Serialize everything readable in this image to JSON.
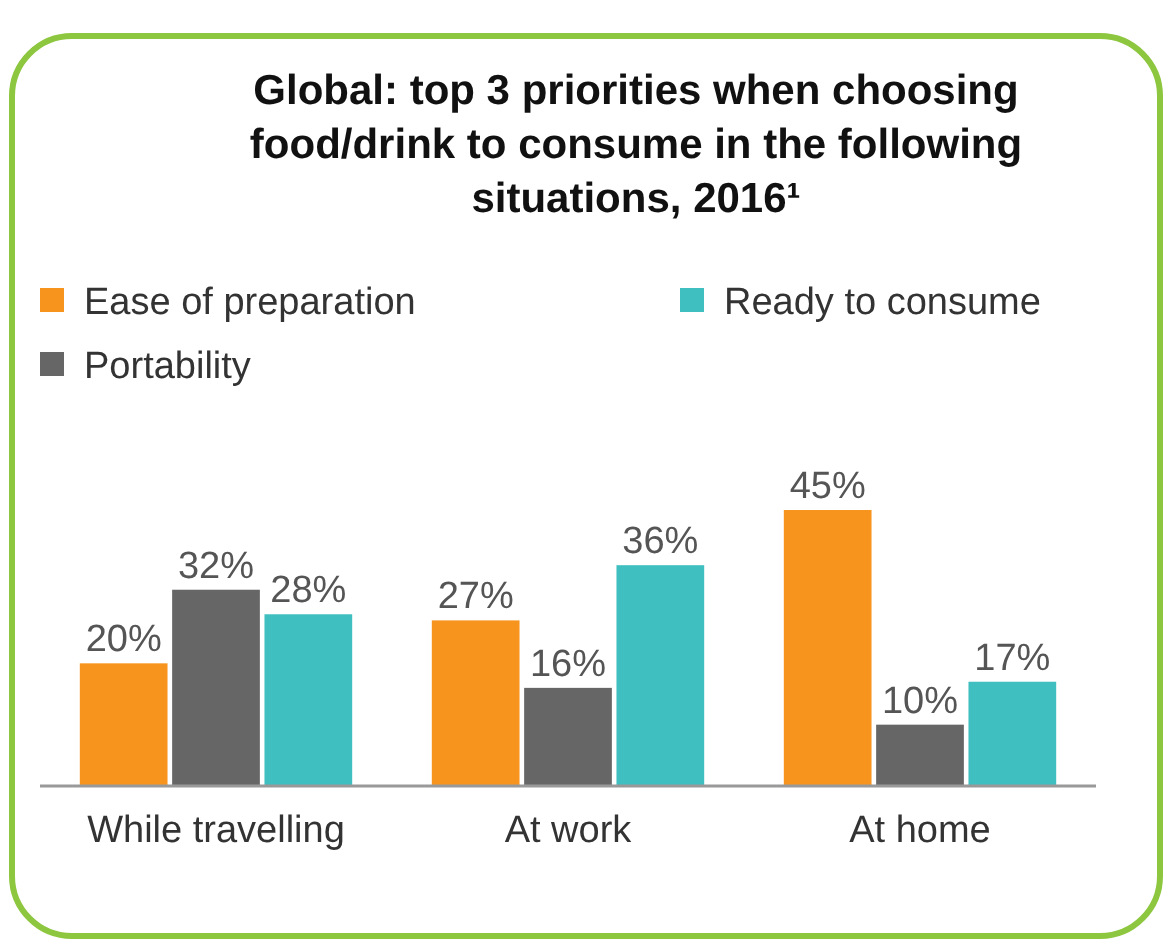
{
  "chart_data": {
    "type": "bar",
    "title": "Global: top 3 priorities when choosing food/drink to consume in the following situations, 2016¹",
    "categories": [
      "While travelling",
      "At work",
      "At home"
    ],
    "series": [
      {
        "name": "Ease of preparation",
        "color": "#f7941d",
        "values": [
          20,
          27,
          45
        ],
        "value_labels": [
          "20%",
          "27%",
          "45%"
        ]
      },
      {
        "name": "Portability",
        "color": "#666666",
        "values": [
          32,
          16,
          10
        ],
        "value_labels": [
          "32%",
          "16%",
          "10%"
        ]
      },
      {
        "name": "Ready to consume",
        "color": "#3fbfbf",
        "values": [
          28,
          36,
          17
        ],
        "value_labels": [
          "28%",
          "36%",
          "17%"
        ]
      }
    ],
    "relative": false,
    "legend": "top"
  }
}
